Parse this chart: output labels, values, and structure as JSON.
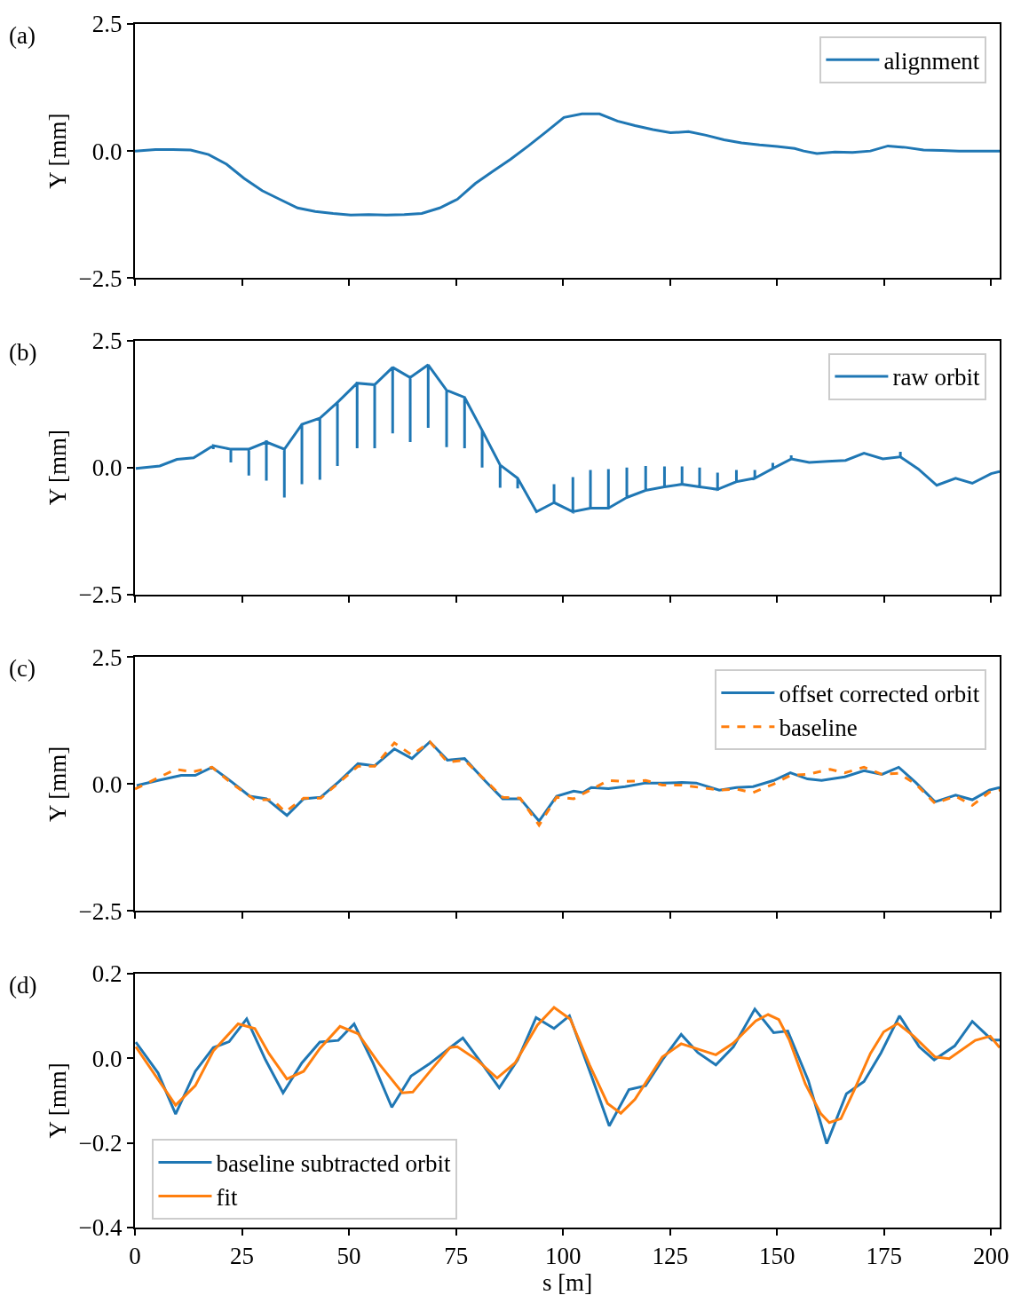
{
  "chart_data": [
    {
      "type": "line",
      "title": "(a)",
      "ylabel": "Y [mm]",
      "xlim": [
        0,
        202
      ],
      "xticks": [
        0,
        25,
        50,
        75,
        100,
        125,
        150,
        175,
        200
      ],
      "ylim": [
        -2.5,
        2.5
      ],
      "yticks": [
        {
          "value": -2.5,
          "label": "−2.5"
        },
        {
          "value": 0,
          "label": "0.0"
        },
        {
          "value": 2.5,
          "label": "2.5"
        }
      ],
      "tick_labels": "y",
      "legend": "top right",
      "series": [
        {
          "name": "alignment",
          "color": "#1f77b4",
          "x": [
            0,
            4.8,
            8.9,
            13,
            17.2,
            21.4,
            25.5,
            29.7,
            33.8,
            38,
            42.1,
            46.3,
            50.4,
            54.6,
            58.7,
            62.9,
            67,
            71.2,
            75.3,
            79.5,
            83.6,
            87.8,
            91.9,
            96.1,
            100.2,
            104.4,
            108.5,
            112.7,
            116.8,
            121,
            125.1,
            129.3,
            133.4,
            137.6,
            141.7,
            145.9,
            150,
            154.1,
            156.2,
            159.3,
            163.5,
            167.6,
            171.8,
            175.9,
            180.1,
            184.2,
            188.4,
            192.5,
            202
          ],
          "values": [
            0,
            0.03,
            0.03,
            0.02,
            -0.07,
            -0.26,
            -0.54,
            -0.78,
            -0.95,
            -1.12,
            -1.19,
            -1.23,
            -1.26,
            -1.25,
            -1.26,
            -1.25,
            -1.23,
            -1.12,
            -0.95,
            -0.64,
            -0.4,
            -0.16,
            0.1,
            0.38,
            0.66,
            0.73,
            0.73,
            0.59,
            0.5,
            0.42,
            0.36,
            0.38,
            0.31,
            0.22,
            0.16,
            0.12,
            0.09,
            0.05,
            0,
            -0.05,
            -0.02,
            -0.03,
            0,
            0.1,
            0.07,
            0.02,
            0.01,
            0,
            0
          ]
        }
      ]
    },
    {
      "type": "line",
      "title": "(b)",
      "ylabel": "Y [mm]",
      "xlim": [
        0,
        202
      ],
      "xticks": [
        0,
        25,
        50,
        75,
        100,
        125,
        150,
        175,
        200
      ],
      "ylim": [
        -2.5,
        2.5
      ],
      "yticks": [
        {
          "value": -2.5,
          "label": "−2.5"
        },
        {
          "value": 0,
          "label": "0.0"
        },
        {
          "value": 2.5,
          "label": "2.5"
        }
      ],
      "tick_labels": "y",
      "legend": "top right",
      "series": [
        {
          "name": "raw orbit",
          "color": "#1f77b4",
          "x": [
            0.2,
            5.8,
            9.8,
            13.7,
            18.3,
            18.3,
            18.3,
            22.4,
            22.4,
            22.4,
            26.6,
            26.6,
            26.6,
            30.7,
            30.7,
            30.7,
            34.9,
            34.9,
            34.9,
            39,
            39,
            39,
            43.2,
            43.2,
            43.2,
            47.3,
            47.3,
            47.3,
            51.9,
            51.9,
            51.9,
            56,
            56,
            56,
            60.2,
            60.2,
            60.2,
            64.3,
            64.3,
            64.3,
            68.5,
            68.5,
            68.5,
            72.8,
            72.8,
            72.8,
            77,
            77,
            77,
            81.1,
            81.1,
            81.1,
            85.3,
            85.3,
            85.3,
            89.4,
            89.4,
            89.4,
            93.8,
            97.9,
            97.9,
            97.9,
            102.3,
            102.3,
            102.3,
            106.4,
            106.4,
            106.4,
            110.6,
            110.6,
            110.6,
            114.9,
            114.9,
            114.9,
            119.3,
            119.3,
            119.3,
            123.7,
            123.7,
            123.7,
            127.8,
            127.8,
            127.8,
            131.9,
            131.9,
            131.9,
            136.1,
            136.1,
            136.1,
            140.5,
            140.5,
            140.5,
            144.8,
            144.8,
            144.8,
            149,
            149,
            149,
            153.3,
            153.3,
            153.3,
            157.5,
            161.8,
            166,
            170.3,
            174.7,
            178.8,
            178.8,
            178.8,
            183,
            187.3,
            191.7,
            195.6,
            200,
            202
          ],
          "values": [
            -0.02,
            0.03,
            0.16,
            0.19,
            0.43,
            0.36,
            0.43,
            0.36,
            0.1,
            0.36,
            0.36,
            -0.16,
            0.36,
            0.5,
            -0.26,
            0.5,
            0.36,
            -0.59,
            0.36,
            0.85,
            -0.33,
            0.85,
            0.97,
            -0.24,
            0.97,
            1.28,
            0.03,
            1.28,
            1.66,
            0.38,
            1.66,
            1.63,
            0.38,
            1.63,
            1.97,
            0.67,
            1.97,
            1.77,
            0.5,
            1.77,
            2.02,
            0.78,
            2.02,
            1.52,
            0.4,
            1.52,
            1.38,
            0.38,
            1.38,
            0.73,
            0,
            0.73,
            0.05,
            -0.4,
            0.05,
            -0.21,
            -0.41,
            -0.21,
            -0.87,
            -0.69,
            -0.33,
            -0.69,
            -0.87,
            -0.19,
            -0.87,
            -0.8,
            -0.05,
            -0.8,
            -0.8,
            -0.03,
            -0.8,
            -0.59,
            0,
            -0.59,
            -0.45,
            0.03,
            -0.45,
            -0.38,
            0.02,
            -0.38,
            -0.33,
            0.02,
            -0.33,
            -0.38,
            0,
            -0.38,
            -0.43,
            -0.1,
            -0.43,
            -0.28,
            -0.05,
            -0.28,
            -0.21,
            -0.05,
            -0.21,
            -0.02,
            0.09,
            -0.02,
            0.17,
            0.24,
            0.17,
            0.1,
            0.12,
            0.14,
            0.28,
            0.17,
            0.21,
            0.31,
            0.21,
            -0.03,
            -0.35,
            -0.21,
            -0.31,
            -0.12,
            -0.08
          ]
        }
      ]
    },
    {
      "type": "line",
      "title": "(c)",
      "ylabel": "Y [mm]",
      "xlim": [
        0,
        202
      ],
      "xticks": [
        0,
        25,
        50,
        75,
        100,
        125,
        150,
        175,
        200
      ],
      "ylim": [
        -2.5,
        2.5
      ],
      "yticks": [
        {
          "value": -2.5,
          "label": "−2.5"
        },
        {
          "value": 0,
          "label": "0.0"
        },
        {
          "value": 2.5,
          "label": "2.5"
        }
      ],
      "tick_labels": "y",
      "legend": "top right",
      "series": [
        {
          "name": "offset corrected orbit",
          "color": "#1f77b4",
          "line_style": "solid",
          "x": [
            0.4,
            5.4,
            10.8,
            14.1,
            18,
            22.8,
            26.8,
            30.7,
            35.5,
            39.4,
            43.4,
            47.7,
            52.1,
            56,
            60.6,
            64.7,
            68.9,
            73,
            77,
            81.7,
            85.9,
            90,
            94.4,
            98.5,
            102.5,
            104.6,
            106.6,
            110.6,
            114.5,
            119.3,
            123.2,
            127.8,
            131.1,
            136.5,
            140.5,
            144.4,
            149.2,
            153.1,
            157.1,
            160.4,
            165.8,
            170.3,
            174.5,
            178.4,
            182.4,
            186.9,
            191.7,
            195.6,
            199.6,
            202
          ],
          "values": [
            -0.03,
            0.07,
            0.17,
            0.17,
            0.33,
            0.03,
            -0.24,
            -0.29,
            -0.62,
            -0.29,
            -0.26,
            0.05,
            0.4,
            0.36,
            0.69,
            0.5,
            0.83,
            0.47,
            0.5,
            0.07,
            -0.29,
            -0.29,
            -0.73,
            -0.24,
            -0.14,
            -0.17,
            -0.07,
            -0.09,
            -0.05,
            0.02,
            0.02,
            0.03,
            0.02,
            -0.12,
            -0.07,
            -0.05,
            0.07,
            0.22,
            0.1,
            0.07,
            0.14,
            0.26,
            0.19,
            0.33,
            0.03,
            -0.35,
            -0.22,
            -0.31,
            -0.12,
            -0.07
          ]
        },
        {
          "name": "baseline",
          "color": "#ff7f0e",
          "line_style": "dashed",
          "x": [
            0,
            9.5,
            13.5,
            18,
            22.8,
            28,
            32.2,
            35.1,
            39.4,
            43.4,
            52.1,
            56,
            60.6,
            64.7,
            68.9,
            73,
            77,
            85.9,
            90,
            94.4,
            98.5,
            102.5,
            110.6,
            114.5,
            119.3,
            123.2,
            127.8,
            136.5,
            140.5,
            144.4,
            149.2,
            153.1,
            157.1,
            162.4,
            165.8,
            170.3,
            174.5,
            178.4,
            182.4,
            186.9,
            191.7,
            195.6,
            199.6,
            202
          ],
          "values": [
            -0.1,
            0.29,
            0.24,
            0.33,
            0,
            -0.31,
            -0.31,
            -0.55,
            -0.28,
            -0.28,
            0.35,
            0.35,
            0.81,
            0.57,
            0.83,
            0.43,
            0.47,
            -0.26,
            -0.28,
            -0.81,
            -0.26,
            -0.29,
            0.07,
            0.05,
            0.07,
            -0.02,
            -0.02,
            -0.12,
            -0.1,
            -0.17,
            0,
            0.17,
            0.19,
            0.29,
            0.22,
            0.33,
            0.19,
            0.21,
            0,
            -0.38,
            -0.24,
            -0.42,
            -0.16,
            -0.12
          ]
        }
      ]
    },
    {
      "type": "line",
      "title": "(d)",
      "xlabel": "s [m]",
      "ylabel": "Y [mm]",
      "xlim": [
        0,
        202
      ],
      "xticks": [
        0,
        25,
        50,
        75,
        100,
        125,
        150,
        175,
        200
      ],
      "ylim": [
        -0.4,
        0.2
      ],
      "yticks": [
        {
          "value": -0.4,
          "label": "−0.4"
        },
        {
          "value": -0.2,
          "label": "−0.2"
        },
        {
          "value": 0,
          "label": "0.0"
        },
        {
          "value": 0.2,
          "label": "0.2"
        }
      ],
      "legend": "bottom left",
      "series": [
        {
          "name": "baseline subtracted orbit",
          "color": "#1f77b4",
          "x": [
            0.2,
            5.4,
            9.5,
            14.1,
            18.3,
            22,
            26.1,
            30.5,
            34.6,
            39,
            43.2,
            47.5,
            51.2,
            55.6,
            60,
            64.5,
            68.7,
            72.6,
            76.6,
            80.9,
            85.1,
            89.4,
            93.7,
            97.9,
            101.5,
            106.6,
            110.8,
            115.4,
            119.3,
            123.2,
            127.6,
            131.5,
            135.7,
            139.8,
            144.8,
            149.2,
            152.5,
            157.3,
            161.6,
            166.2,
            170.3,
            174.3,
            178.6,
            183.2,
            186.7,
            191.5,
            195.6,
            200.2,
            202
          ],
          "values": [
            0.038,
            -0.035,
            -0.132,
            -0.031,
            0.025,
            0.039,
            0.093,
            -0.004,
            -0.082,
            -0.011,
            0.038,
            0.042,
            0.081,
            -0.011,
            -0.116,
            -0.042,
            -0.014,
            0.017,
            0.048,
            -0.011,
            -0.07,
            -0.004,
            0.096,
            0.07,
            0.1,
            -0.041,
            -0.16,
            -0.074,
            -0.065,
            -0.004,
            0.056,
            0.013,
            -0.016,
            0.027,
            0.116,
            0.06,
            0.064,
            -0.053,
            -0.202,
            -0.084,
            -0.055,
            0.013,
            0.1,
            0.027,
            -0.004,
            0.029,
            0.087,
            0.043,
            0.043
          ]
        },
        {
          "name": "fit",
          "color": "#ff7f0e",
          "x": [
            0.2,
            9.5,
            14.1,
            18.3,
            24.1,
            28,
            31.3,
            35.5,
            39.4,
            43.2,
            47.9,
            52.1,
            57.1,
            62.5,
            64.9,
            69.5,
            73.6,
            75.3,
            79.9,
            84.6,
            88.8,
            94,
            97.9,
            101.7,
            106.2,
            110.4,
            113.5,
            116.8,
            123.2,
            127.6,
            131.3,
            135.7,
            139.8,
            145,
            147.9,
            150.4,
            152.9,
            156.6,
            160.2,
            162.2,
            164.9,
            168,
            171.8,
            174.9,
            178.2,
            181.9,
            186.9,
            190.2,
            196.3,
            199.8,
            202
          ],
          "values": [
            0.027,
            -0.111,
            -0.065,
            0.017,
            0.081,
            0.07,
            0.011,
            -0.049,
            -0.031,
            0.023,
            0.075,
            0.058,
            -0.014,
            -0.082,
            -0.08,
            -0.024,
            0.025,
            0.027,
            -0.004,
            -0.047,
            -0.011,
            0.078,
            0.12,
            0.092,
            -0.016,
            -0.107,
            -0.13,
            -0.097,
            0.003,
            0.034,
            0.022,
            0.008,
            0.036,
            0.088,
            0.103,
            0.091,
            0.042,
            -0.061,
            -0.131,
            -0.152,
            -0.143,
            -0.076,
            0.011,
            0.062,
            0.082,
            0.052,
            0.003,
            -0.001,
            0.042,
            0.052,
            0.025
          ]
        }
      ]
    }
  ]
}
